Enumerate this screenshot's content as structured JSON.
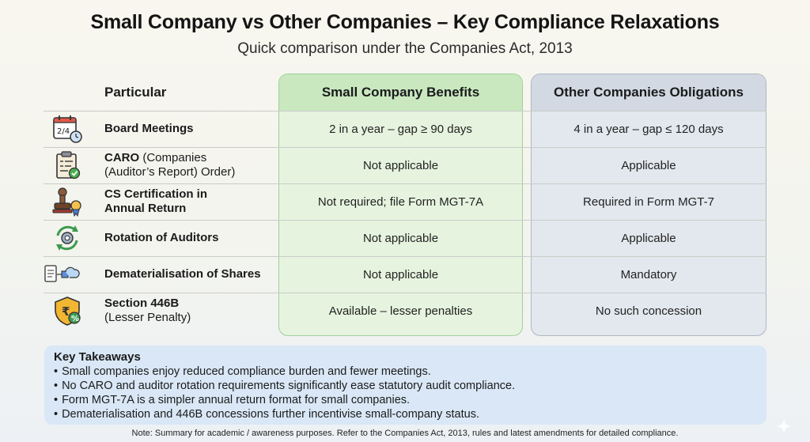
{
  "title": "Small Company vs Other Companies – Key Compliance Relaxations",
  "subtitle": "Quick comparison under the Companies Act, 2013",
  "table": {
    "headers": {
      "particular": "Particular",
      "small": "Small Company Benefits",
      "other": "Other Companies Obligations"
    },
    "rows": [
      {
        "icon": "calendar-clock-icon",
        "label_bold": "Board Meetings",
        "label_rest": "",
        "label_line2": "",
        "small": "2 in a year – gap ≥ 90 days",
        "other": "4 in a year – gap ≤ 120 days"
      },
      {
        "icon": "clipboard-check-icon",
        "label_bold": "CARO",
        "label_rest": " (Companies",
        "label_line2": "(Auditor’s Report) Order)",
        "small": "Not applicable",
        "other": "Applicable"
      },
      {
        "icon": "stamp-seal-icon",
        "label_bold": "CS Certification in",
        "label_rest": "",
        "label_line2": "Annual Return",
        "small": "Not required; file Form MGT-7A",
        "other": "Required in Form MGT-7"
      },
      {
        "icon": "rotation-gear-icon",
        "label_bold": "Rotation of Auditors",
        "label_rest": "",
        "label_line2": "",
        "small": "Not applicable",
        "other": "Applicable"
      },
      {
        "icon": "document-cloud-icon",
        "label_bold": "Dematerialisation of Shares",
        "label_rest": "",
        "label_line2": "",
        "small": "Not applicable",
        "other": "Mandatory"
      },
      {
        "icon": "rupee-shield-icon",
        "label_bold": "Section 446B",
        "label_rest": "",
        "label_line2": "(Lesser Penalty)",
        "small": "Available – lesser penalties",
        "other": "No such concession"
      }
    ]
  },
  "takeaways": {
    "title": "Key Takeaways",
    "items": [
      "Small companies enjoy reduced compliance burden and fewer meetings.",
      "No CARO and auditor rotation requirements significantly ease statutory audit compliance.",
      "Form MGT-7A is a simpler annual return format for small companies.",
      "Dematerialisation and 446B concessions further incentivise small-company status."
    ]
  },
  "note": "Note: Summary for academic / awareness purposes. Refer to the Companies Act, 2013, rules and latest amendments for detailed compliance.",
  "colors": {
    "small_bg": "#e6f4df",
    "small_header": "#c9e8c0",
    "other_bg": "#e3e8ee",
    "other_header": "#d2d9e2",
    "takeaways_bg": "#d9e7f6"
  }
}
